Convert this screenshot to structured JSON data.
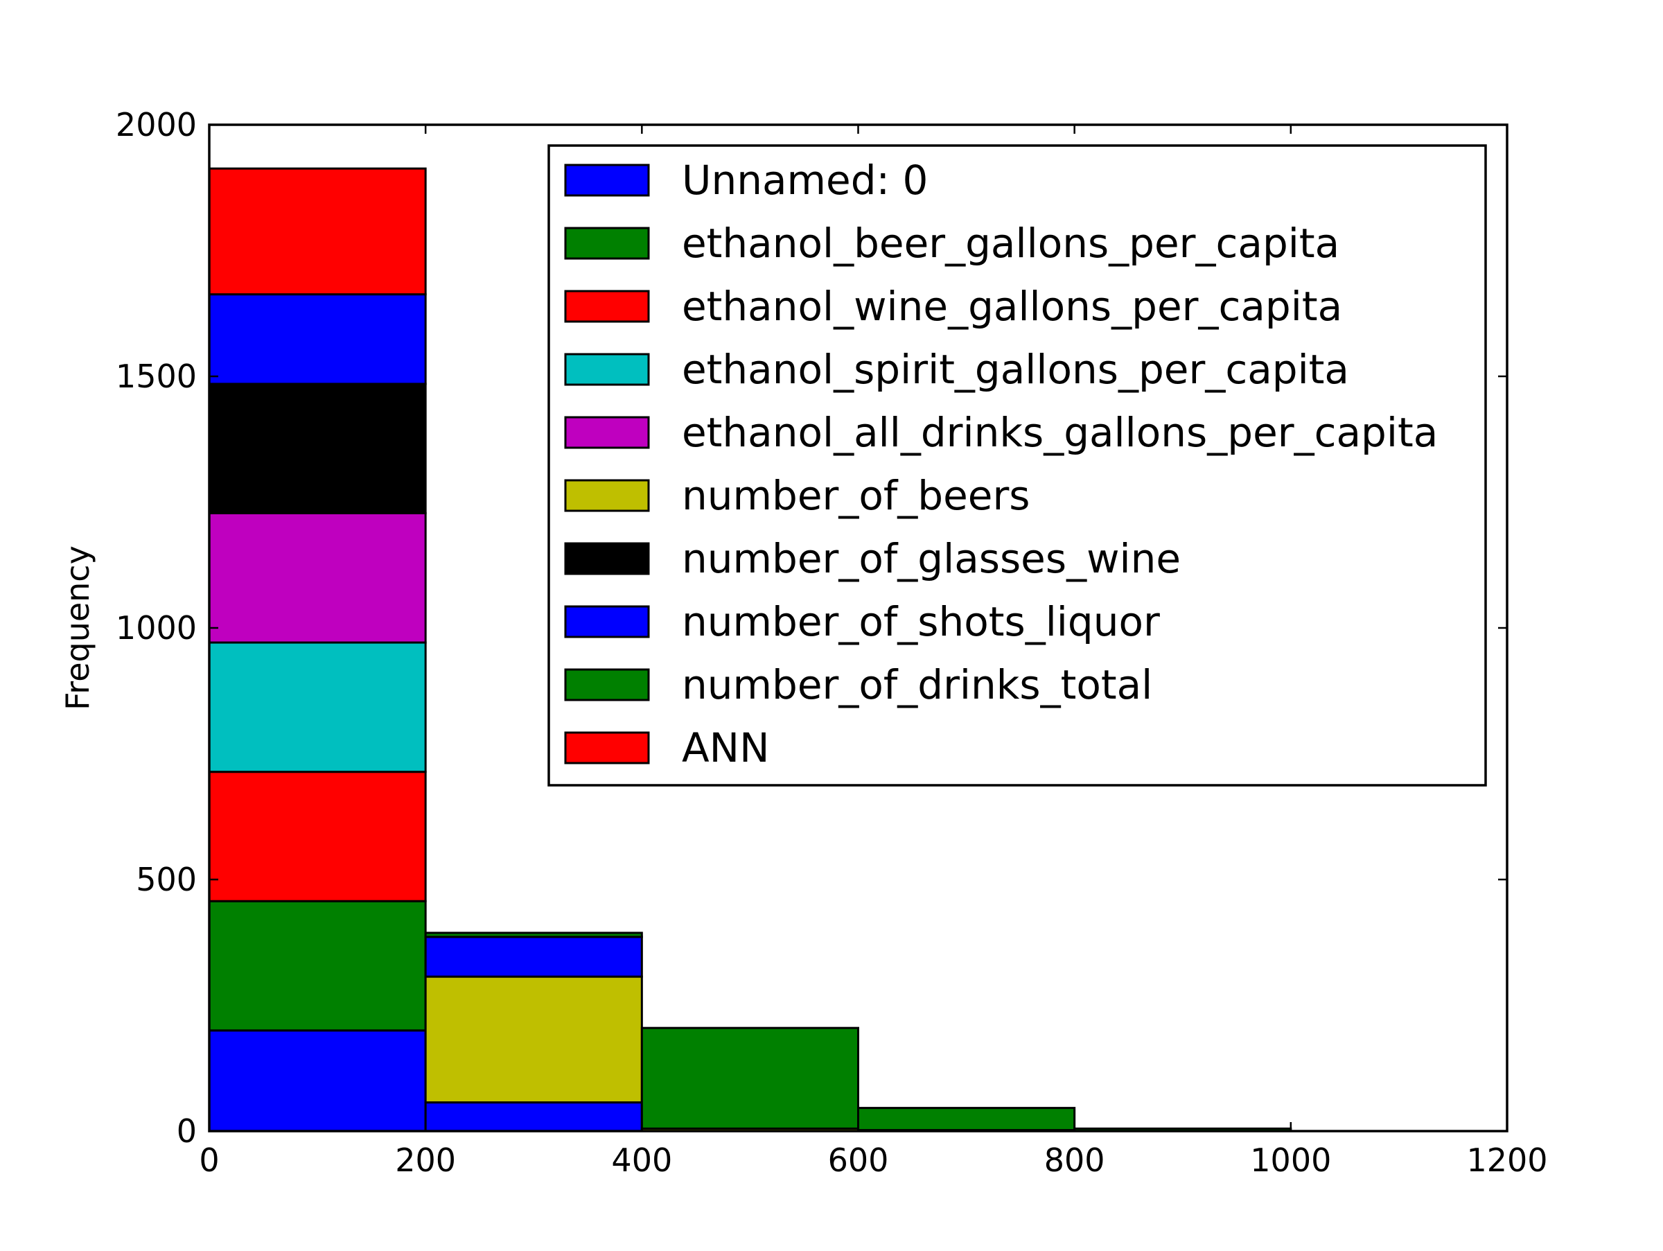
{
  "chart_data": {
    "type": "bar",
    "subtype": "stacked-histogram",
    "title": "",
    "xlabel": "",
    "ylabel": "Frequency",
    "xlim": [
      0,
      1200
    ],
    "ylim": [
      0,
      2000
    ],
    "xticks": [
      0,
      200,
      400,
      600,
      800,
      1000,
      1200
    ],
    "yticks": [
      0,
      500,
      1000,
      1500,
      2000
    ],
    "grid": false,
    "legend_position": "upper right",
    "bins": [
      [
        0,
        200
      ],
      [
        200,
        400
      ],
      [
        400,
        600
      ],
      [
        600,
        800
      ],
      [
        800,
        1000
      ]
    ],
    "series": [
      {
        "name": "Unnamed: 0",
        "color": "#0000ff",
        "values": [
          200,
          57,
          0,
          0,
          0
        ]
      },
      {
        "name": "ethanol_beer_gallons_per_capita",
        "color": "#008000",
        "values": [
          257,
          0,
          0,
          0,
          0
        ]
      },
      {
        "name": "ethanol_wine_gallons_per_capita",
        "color": "#ff0000",
        "values": [
          257,
          0,
          0,
          0,
          0
        ]
      },
      {
        "name": "ethanol_spirit_gallons_per_capita",
        "color": "#00bfbf",
        "values": [
          257,
          0,
          0,
          0,
          0
        ]
      },
      {
        "name": "ethanol_all_drinks_gallons_per_capita",
        "color": "#bf00bf",
        "values": [
          257,
          0,
          0,
          0,
          0
        ]
      },
      {
        "name": "number_of_beers",
        "color": "#bfbf00",
        "values": [
          0,
          250,
          5,
          2,
          0
        ]
      },
      {
        "name": "number_of_glasses_wine",
        "color": "#000000",
        "values": [
          257,
          0,
          0,
          0,
          0
        ]
      },
      {
        "name": "number_of_shots_liquor",
        "color": "#0000ff",
        "values": [
          178,
          79,
          0,
          0,
          0
        ]
      },
      {
        "name": "number_of_drinks_total",
        "color": "#008000",
        "values": [
          0,
          8,
          200,
          44,
          5
        ]
      },
      {
        "name": "ANN",
        "color": "#ff0000",
        "values": [
          250,
          0,
          0,
          0,
          0
        ]
      }
    ]
  }
}
